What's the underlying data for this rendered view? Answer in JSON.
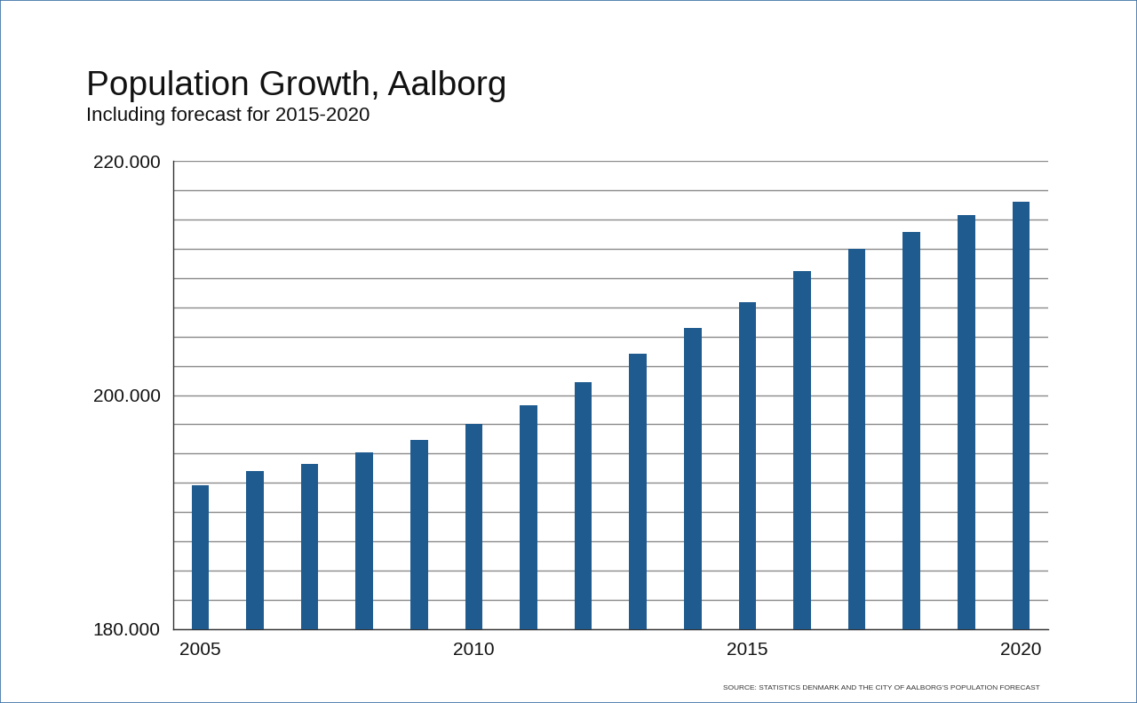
{
  "chart_data": {
    "type": "bar",
    "title": "Population Growth, Aalborg",
    "subtitle": "Including forecast for 2015-2020",
    "source": "SOURCE: STATISTICS DENMARK AND THE CITY OF AALBORG'S POPULATION FORECAST",
    "x": [
      2005,
      2006,
      2007,
      2008,
      2009,
      2010,
      2011,
      2012,
      2013,
      2014,
      2015,
      2016,
      2017,
      2018,
      2019,
      2020
    ],
    "values": [
      192300,
      193500,
      194100,
      195100,
      196200,
      197500,
      199100,
      201100,
      203500,
      205700,
      207900,
      210600,
      212500,
      213900,
      215400,
      216500
    ],
    "color": "#1f5b8f",
    "xlim": [
      2004.5,
      2020.5
    ],
    "xticks": [
      2005,
      2010,
      2015,
      2020
    ],
    "ylim": [
      180000,
      220000
    ],
    "yticks": [
      {
        "value": 180000,
        "label": "180.000"
      },
      {
        "value": 200000,
        "label": "200.000"
      },
      {
        "value": 220000,
        "label": "220.000"
      }
    ],
    "grid": true
  }
}
